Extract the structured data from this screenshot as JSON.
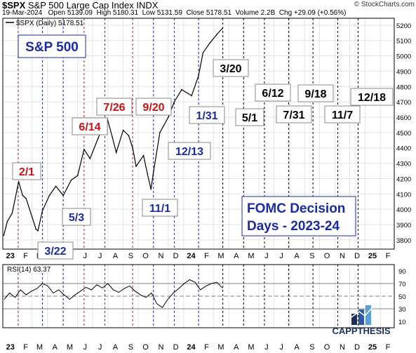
{
  "header": {
    "symbol": "$SPX",
    "index_name": "S&P 500 Large Cap Index",
    "exchange": "INDX",
    "credit": "© StockCharts.com",
    "date": "19-Mar-2024",
    "open": "Open 5139.09",
    "high": "High 5180.31",
    "low": "Low 5131.59",
    "close": "Close 5178.51",
    "volume": "Volume 2.2B",
    "change": "Chg +29.09 (+0.56%)"
  },
  "chart_data": [
    {
      "type": "line",
      "legend": "$SPX (Daily) 5178.51",
      "title_box": "S&P 500",
      "annotation_box": [
        "FOMC Decision",
        "Days - 2023-24"
      ],
      "x_ticks": [
        "23",
        "F",
        "M",
        "A",
        "M",
        "J",
        "J",
        "A",
        "S",
        "O",
        "N",
        "D",
        "24",
        "F",
        "M",
        "A",
        "M",
        "J",
        "J",
        "A",
        "S",
        "O",
        "N",
        "D",
        "25",
        "F"
      ],
      "y_ticks": [
        3800,
        3900,
        4000,
        4100,
        4200,
        4300,
        4400,
        4500,
        4600,
        4700,
        4800,
        4900,
        5000,
        5100,
        5200
      ],
      "ylim": [
        3740,
        5245
      ],
      "grid": true,
      "colors": {
        "line": "#000000",
        "past_fomc": "#d01010",
        "future_fomc": "#000000",
        "blue_marker": "#1a2aa8"
      },
      "series": [
        {
          "x": [
            "2023-01-03",
            "2023-01-10",
            "2023-01-20",
            "2023-02-02",
            "2023-02-10",
            "2023-02-17",
            "2023-03-01",
            "2023-03-09",
            "2023-03-13",
            "2023-03-22",
            "2023-04-05",
            "2023-04-18",
            "2023-05-03",
            "2023-05-19",
            "2023-06-01",
            "2023-06-14",
            "2023-06-26",
            "2023-07-12",
            "2023-07-26",
            "2023-07-31",
            "2023-08-10",
            "2023-08-18",
            "2023-09-01",
            "2023-09-12",
            "2023-09-20",
            "2023-09-27",
            "2023-10-12",
            "2023-10-20",
            "2023-10-27",
            "2023-11-01",
            "2023-11-14",
            "2023-12-01",
            "2023-12-13",
            "2023-12-28",
            "2024-01-17",
            "2024-01-31",
            "2024-02-09",
            "2024-02-22",
            "2024-03-08",
            "2024-03-19"
          ],
          "values": [
            3830,
            3920,
            3975,
            4180,
            4090,
            4070,
            3950,
            3870,
            3860,
            3990,
            4090,
            4150,
            4090,
            4190,
            4220,
            4390,
            4330,
            4460,
            4570,
            4590,
            4470,
            4370,
            4515,
            4480,
            4400,
            4280,
            4350,
            4230,
            4130,
            4240,
            4500,
            4600,
            4700,
            4780,
            4740,
            4870,
            5020,
            5080,
            5140,
            5178
          ]
        }
      ],
      "fomc_markers": [
        {
          "label": "2/1",
          "date": "2023-02-01",
          "color": "#d01010"
        },
        {
          "label": "3/22",
          "date": "2023-03-22",
          "color": "#1a2aa8"
        },
        {
          "label": "5/3",
          "date": "2023-05-03",
          "color": "#1a2aa8"
        },
        {
          "label": "6/14",
          "date": "2023-06-14",
          "color": "#d01010"
        },
        {
          "label": "7/26",
          "date": "2023-07-26",
          "color": "#d01010"
        },
        {
          "label": "9/20",
          "date": "2023-09-20",
          "color": "#d01010"
        },
        {
          "label": "11/1",
          "date": "2023-11-01",
          "color": "#1a2aa8"
        },
        {
          "label": "12/13",
          "date": "2023-12-13",
          "color": "#1a2aa8"
        },
        {
          "label": "1/31",
          "date": "2024-01-31",
          "color": "#1a2aa8"
        },
        {
          "label": "3/20",
          "date": "2024-03-20",
          "color": "#000000"
        },
        {
          "label": "5/1",
          "date": "2024-05-01",
          "color": "#000000"
        },
        {
          "label": "6/12",
          "date": "2024-06-12",
          "color": "#000000"
        },
        {
          "label": "7/31",
          "date": "2024-07-31",
          "color": "#000000"
        },
        {
          "label": "9/18",
          "date": "2024-09-18",
          "color": "#000000"
        },
        {
          "label": "11/7",
          "date": "2024-11-07",
          "color": "#000000"
        },
        {
          "label": "12/18",
          "date": "2024-12-18",
          "color": "#000000"
        }
      ]
    },
    {
      "type": "line",
      "legend": "RSI(14) 63.37",
      "y_ticks": [
        10,
        30,
        50,
        70,
        90
      ],
      "ylim": [
        0,
        100
      ],
      "reference_lines": [
        30,
        50,
        70
      ],
      "series": [
        {
          "values": [
            45,
            55,
            48,
            60,
            52,
            58,
            62,
            70,
            66,
            55,
            60,
            52,
            45,
            52,
            58,
            64,
            60,
            68,
            63,
            70,
            60,
            56,
            62,
            66,
            58,
            52,
            48,
            55,
            38,
            32,
            45,
            55,
            62,
            70,
            76,
            72,
            60,
            66,
            70,
            72,
            63
          ]
        }
      ]
    }
  ],
  "logo": {
    "text": "CAPPTHESIS",
    "colors": {
      "dark": "#1c2f5e",
      "mid": "#2f5aa3",
      "light": "#5aa0d8"
    }
  }
}
